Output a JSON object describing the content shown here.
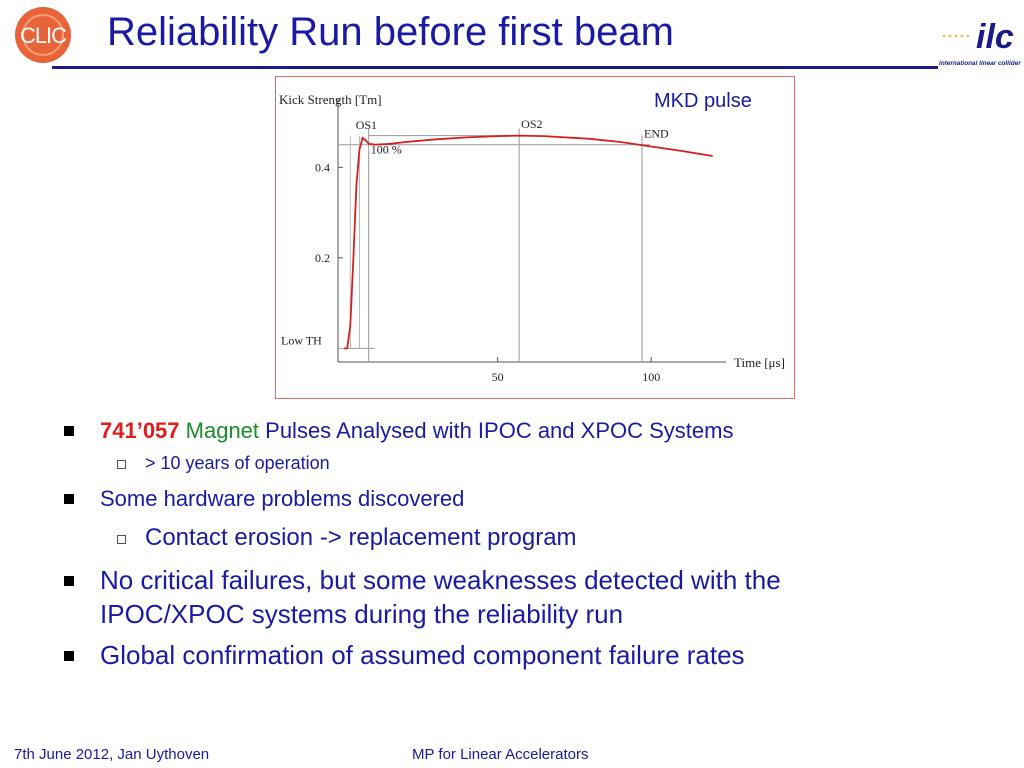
{
  "header": {
    "title": "Reliability Run before first beam",
    "logo_left_text": "CLIC",
    "logo_right_text": "ilc",
    "logo_right_subtext": "international linear collider"
  },
  "chart_data": {
    "type": "line",
    "title": "MKD pulse",
    "ylabel": "Kick Strength [Tm]",
    "xlabel": "Time [μs]",
    "x_ticks": [
      "50",
      "100"
    ],
    "y_ticks": [
      "0.2",
      "0.4"
    ],
    "xlim": [
      -2,
      125
    ],
    "ylim": [
      -0.03,
      0.52
    ],
    "grid": false,
    "annotations": [
      "OS1",
      "OS2",
      "END",
      "100 %",
      "Low TH"
    ],
    "series": [
      {
        "x": [
          0,
          1,
          2,
          3,
          4,
          5,
          6,
          7,
          8,
          10,
          15,
          20,
          30,
          40,
          50,
          57,
          65,
          80,
          90,
          100,
          110,
          120
        ],
        "y": [
          0.0,
          0.0,
          0.05,
          0.2,
          0.36,
          0.44,
          0.465,
          0.46,
          0.452,
          0.45,
          0.452,
          0.456,
          0.462,
          0.466,
          0.469,
          0.47,
          0.469,
          0.463,
          0.456,
          0.446,
          0.436,
          0.425
        ]
      }
    ],
    "markers": {
      "os1_x": 8,
      "os2_x": 57,
      "end_x": 97,
      "hundred_pct_y": 0.45,
      "os2_y": 0.47,
      "low_th_y": 0.0
    }
  },
  "bullets": [
    {
      "level": 1,
      "parts": [
        {
          "text": "741’057",
          "style": "red"
        },
        {
          "text": " Magnet",
          "style": "green"
        },
        {
          "text": " Pulses Analysed with IPOC and XPOC Systems",
          "style": ""
        }
      ]
    },
    {
      "level": 2,
      "text": "> 10 years of operation"
    },
    {
      "level": 1,
      "text": "Some hardware problems discovered"
    },
    {
      "level": 2,
      "text": "Contact erosion -> replacement program"
    },
    {
      "level": 1,
      "lines": [
        "No critical failures, but some weaknesses detected with the",
        "IPOC/XPOC systems during the reliability run"
      ]
    },
    {
      "level": 1,
      "text": "Global confirmation of assumed component failure rates"
    }
  ],
  "footer": {
    "left": "7th June 2012, Jan Uythoven",
    "center": "MP for Linear Accelerators"
  },
  "colors": {
    "title": "#1a1aa6",
    "accent_red": "#e21b1b",
    "accent_green": "#1a8c2e",
    "curve": "#d42020"
  }
}
